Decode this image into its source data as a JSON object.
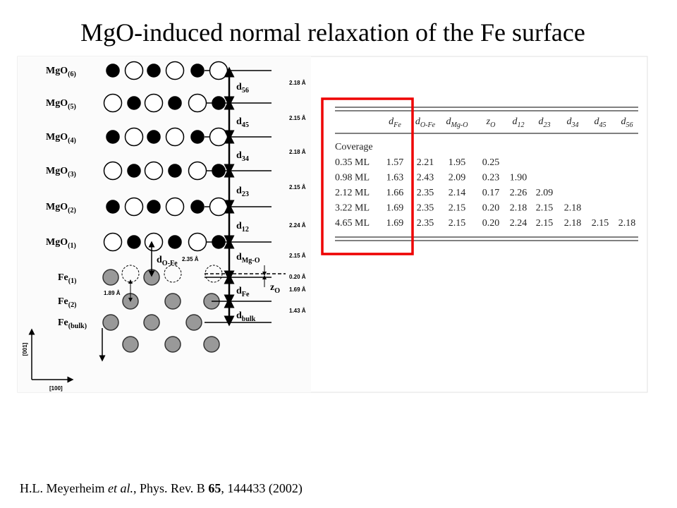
{
  "title": "MgO-induced normal relaxation of the Fe surface",
  "figure": {
    "layers": [
      {
        "base": "MgO",
        "sub": "(6)"
      },
      {
        "base": "MgO",
        "sub": "(5)"
      },
      {
        "base": "MgO",
        "sub": "(4)"
      },
      {
        "base": "MgO",
        "sub": "(3)"
      },
      {
        "base": "MgO",
        "sub": "(2)"
      },
      {
        "base": "MgO",
        "sub": "(1)"
      },
      {
        "base": "Fe",
        "sub": "(1)"
      },
      {
        "base": "Fe",
        "sub": "(2)"
      },
      {
        "base": "Fe",
        "sub": "(bulk)"
      }
    ],
    "spacings": [
      {
        "base": "d",
        "sub": "56",
        "value": "2.18 Å"
      },
      {
        "base": "d",
        "sub": "45",
        "value": "2.15 Å"
      },
      {
        "base": "d",
        "sub": "34",
        "value": "2.18 Å"
      },
      {
        "base": "d",
        "sub": "23",
        "value": "2.15 Å"
      },
      {
        "base": "d",
        "sub": "12",
        "value": "2.24 Å"
      },
      {
        "base": "d",
        "sub": "Mg-O",
        "value": "2.15 Å"
      },
      {
        "base": "z",
        "sub": "O",
        "value": "0.20 Å"
      },
      {
        "base": "d",
        "sub": "Fe",
        "value": "1.69 Å"
      },
      {
        "base": "d",
        "sub": "bulk",
        "value": "1.43 Å"
      }
    ],
    "o_fe": {
      "base": "d",
      "sub": "O-Fe",
      "value": "2.35 Å"
    },
    "fe_offset": "1.89 Å",
    "axis_vertical": "[001]",
    "axis_horizontal": "[100]"
  },
  "table": {
    "headers": [
      {
        "base": "d",
        "sub": "Fe"
      },
      {
        "base": "d",
        "sub": "O-Fe"
      },
      {
        "base": "d",
        "sub": "Mg-O"
      },
      {
        "base": "z",
        "sub": "O"
      },
      {
        "base": "d",
        "sub": "12"
      },
      {
        "base": "d",
        "sub": "23"
      },
      {
        "base": "d",
        "sub": "34"
      },
      {
        "base": "d",
        "sub": "45"
      },
      {
        "base": "d",
        "sub": "56"
      }
    ],
    "section": "Coverage",
    "rows": [
      [
        "0.35 ML",
        "1.57",
        "2.21",
        "1.95",
        "0.25"
      ],
      [
        "0.98 ML",
        "1.63",
        "2.43",
        "2.09",
        "0.23",
        "1.90"
      ],
      [
        "2.12 ML",
        "1.66",
        "2.35",
        "2.14",
        "0.17",
        "2.26",
        "2.09"
      ],
      [
        "3.22 ML",
        "1.69",
        "2.35",
        "2.15",
        "0.20",
        "2.18",
        "2.15",
        "2.18"
      ],
      [
        "4.65 ML",
        "1.69",
        "2.35",
        "2.15",
        "0.20",
        "2.24",
        "2.15",
        "2.18",
        "2.15",
        "2.18"
      ]
    ]
  },
  "citation": {
    "authors": "H.L. Meyerheim ",
    "etal": "et al.",
    "journal": ", Phys. Rev. B ",
    "volume": "65",
    "rest": ", 144433 (2002)"
  }
}
